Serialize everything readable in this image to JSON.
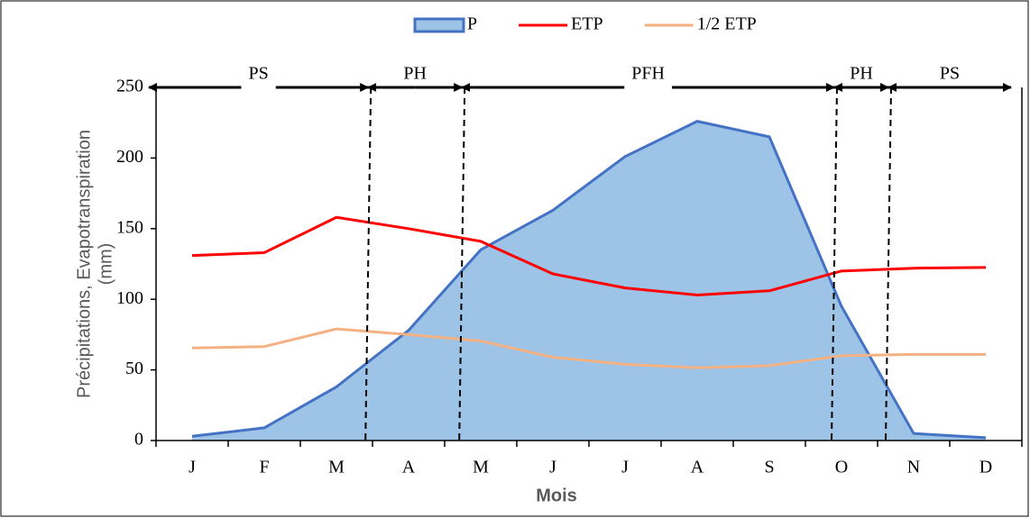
{
  "chart_data": {
    "type": "area-line",
    "categories": [
      "J",
      "F",
      "M",
      "A",
      "M",
      "J",
      "J",
      "A",
      "S",
      "O",
      "N",
      "D"
    ],
    "series": [
      {
        "name": "P",
        "kind": "area",
        "color": "#4472c4",
        "fill": "#9dc3e6",
        "values": [
          3,
          9,
          38,
          78,
          135,
          163,
          201,
          226,
          215,
          95,
          5,
          2
        ]
      },
      {
        "name": "ETP",
        "kind": "line",
        "color": "#ff0000",
        "values": [
          131,
          133,
          158,
          150,
          141,
          118,
          108,
          103,
          106,
          120,
          122,
          122.5
        ]
      },
      {
        "name": "1/2 ETP",
        "kind": "line",
        "color": "#f4b183",
        "values": [
          65.5,
          66.5,
          79,
          75,
          70.5,
          59,
          54,
          51.5,
          53,
          60,
          61,
          61
        ]
      }
    ],
    "ylim": [
      0,
      250
    ],
    "yticks": [
      0,
      50,
      100,
      150,
      200,
      250
    ],
    "y_label": [
      "Précipitations, Evapotranspiration",
      "(mm)"
    ],
    "x_label": "Mois",
    "legend": "top",
    "periods": [
      {
        "label": "PS",
        "start": -0.5,
        "end": 2.44
      },
      {
        "label": "PH",
        "start": 2.44,
        "end": 3.74
      },
      {
        "label": "PFH",
        "start": 3.74,
        "end": 8.9
      },
      {
        "label": "PH",
        "start": 8.9,
        "end": 9.65
      },
      {
        "label": "PS",
        "start": 9.65,
        "end": 11.5
      }
    ],
    "period_bounds": [
      2.44,
      3.74,
      8.9,
      9.65
    ]
  }
}
